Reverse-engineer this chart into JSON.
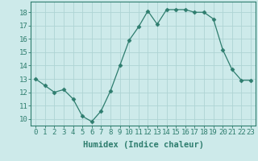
{
  "x": [
    0,
    1,
    2,
    3,
    4,
    5,
    6,
    7,
    8,
    9,
    10,
    11,
    12,
    13,
    14,
    15,
    16,
    17,
    18,
    19,
    20,
    21,
    22,
    23
  ],
  "y": [
    13.0,
    12.5,
    12.0,
    12.2,
    11.5,
    10.2,
    9.8,
    10.6,
    12.1,
    14.0,
    15.9,
    16.9,
    18.1,
    17.1,
    18.2,
    18.2,
    18.2,
    18.0,
    18.0,
    17.5,
    15.2,
    13.7,
    12.9,
    12.9
  ],
  "xlabel": "Humidex (Indice chaleur)",
  "xlim": [
    -0.5,
    23.5
  ],
  "ylim": [
    9.5,
    18.8
  ],
  "yticks": [
    10,
    11,
    12,
    13,
    14,
    15,
    16,
    17,
    18
  ],
  "xticks": [
    0,
    1,
    2,
    3,
    4,
    5,
    6,
    7,
    8,
    9,
    10,
    11,
    12,
    13,
    14,
    15,
    16,
    17,
    18,
    19,
    20,
    21,
    22,
    23
  ],
  "line_color": "#2e7d6e",
  "marker": "D",
  "marker_size": 2.5,
  "bg_color": "#cdeaea",
  "grid_color": "#aed4d4",
  "tick_label_fontsize": 6.5,
  "xlabel_fontsize": 7.5,
  "spine_color": "#2e7d6e"
}
